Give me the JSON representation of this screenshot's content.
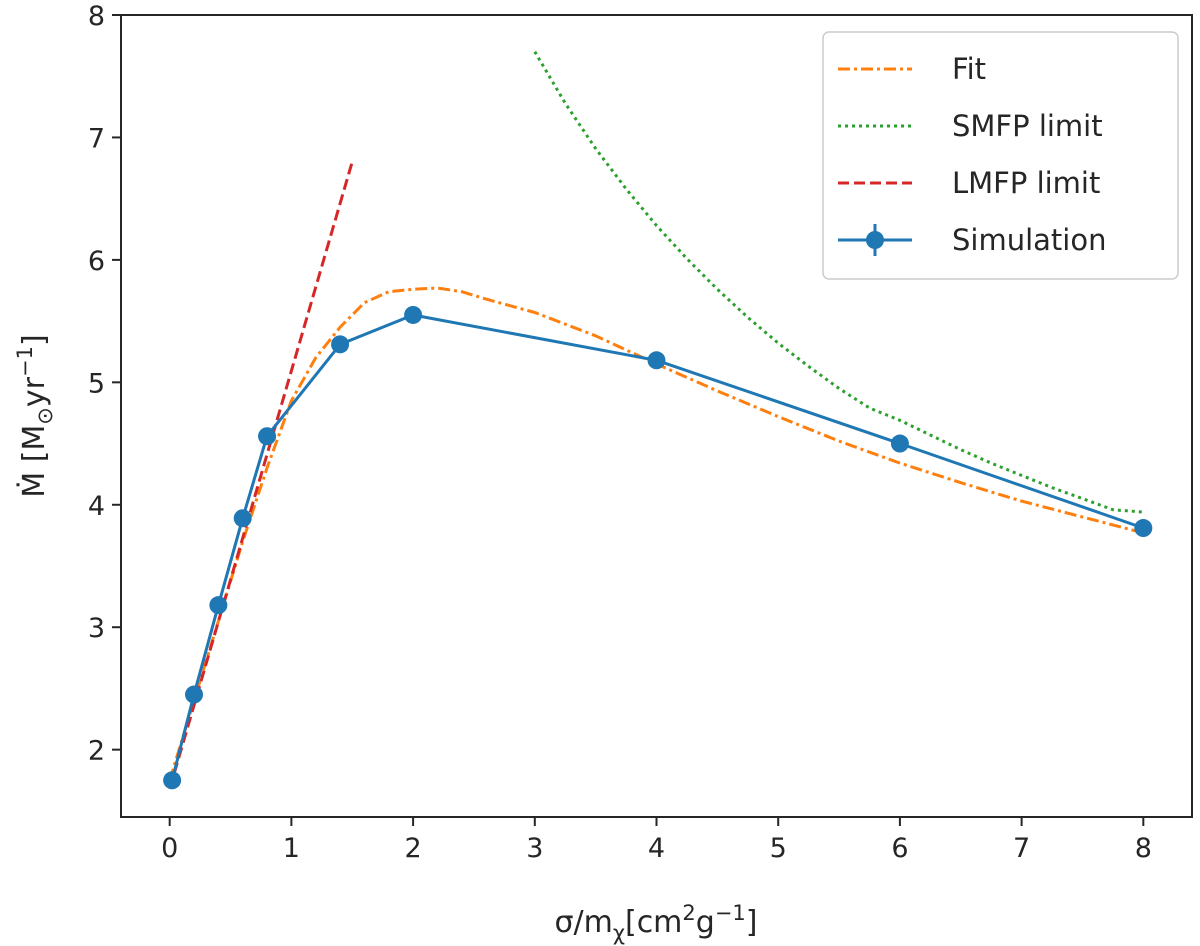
{
  "chart_data": {
    "type": "line",
    "xlabel": {
      "main": "σ/m",
      "sub": "χ",
      "rest1": "[cm",
      "sup1": "2",
      "rest2": "g",
      "sup2": "−1",
      "rest3": "]"
    },
    "ylabel": {
      "main": "Ṁ [M",
      "sub": "⊙",
      "rest1": "yr",
      "sup1": "−1",
      "rest2": "]"
    },
    "xlim": [
      -0.4,
      8.4
    ],
    "ylim": [
      1.45,
      8.0
    ],
    "xticks": [
      0,
      1,
      2,
      3,
      4,
      5,
      6,
      7,
      8
    ],
    "xtick_labels": [
      "0",
      "1",
      "2",
      "3",
      "4",
      "5",
      "6",
      "7",
      "8"
    ],
    "yticks": [
      2,
      3,
      4,
      5,
      6,
      7,
      8
    ],
    "ytick_labels": [
      "2",
      "3",
      "4",
      "5",
      "6",
      "7",
      "8"
    ],
    "legend_position": "top-right",
    "series": [
      {
        "name": "Fit",
        "color": "#ff7f0e",
        "style": "dashdot",
        "x": [
          0.0,
          0.2,
          0.4,
          0.6,
          0.8,
          1.0,
          1.2,
          1.4,
          1.6,
          1.8,
          2.0,
          2.2,
          2.4,
          2.6,
          3.0,
          3.5,
          4.0,
          4.5,
          5.0,
          5.5,
          6.0,
          6.5,
          7.0,
          7.5,
          8.0
        ],
        "y": [
          1.75,
          2.4,
          3.05,
          3.7,
          4.3,
          4.85,
          5.2,
          5.45,
          5.65,
          5.74,
          5.76,
          5.77,
          5.74,
          5.68,
          5.57,
          5.38,
          5.15,
          4.93,
          4.72,
          4.52,
          4.34,
          4.18,
          4.03,
          3.9,
          3.77
        ]
      },
      {
        "name": "SMFP limit",
        "color": "#2ca02c",
        "style": "dotted",
        "x": [
          3.0,
          3.25,
          3.5,
          3.75,
          4.0,
          4.25,
          4.5,
          4.75,
          5.0,
          5.25,
          5.5,
          5.75,
          6.0,
          6.25,
          6.5,
          6.75,
          7.0,
          7.25,
          7.5,
          7.75,
          8.0
        ],
        "y": [
          7.7,
          7.28,
          6.91,
          6.58,
          6.28,
          6.01,
          5.76,
          5.53,
          5.32,
          5.13,
          4.95,
          4.79,
          4.69,
          4.57,
          4.45,
          4.34,
          4.24,
          4.14,
          4.05,
          3.96,
          3.94
        ]
      },
      {
        "name": "LMFP limit",
        "color": "#d62728",
        "style": "dashed",
        "x": [
          0.0,
          1.5
        ],
        "y": [
          1.68,
          6.8
        ]
      },
      {
        "name": "Simulation",
        "color": "#1f77b4",
        "style": "solid-marker",
        "x": [
          0.02,
          0.2,
          0.4,
          0.6,
          0.8,
          1.4,
          2.0,
          4.0,
          6.0,
          8.0
        ],
        "y": [
          1.75,
          2.45,
          3.18,
          3.89,
          4.56,
          5.31,
          5.55,
          5.18,
          4.5,
          3.81
        ]
      }
    ]
  }
}
